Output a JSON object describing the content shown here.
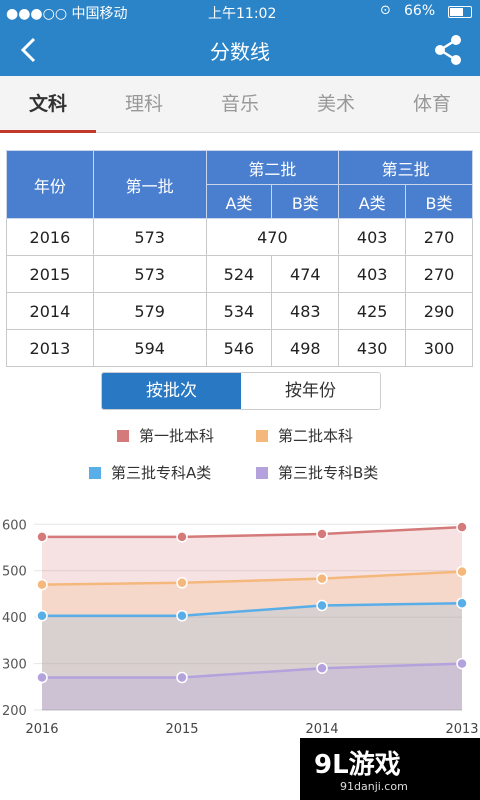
{
  "status": {
    "carrier": "●●●○○ 中国移动",
    "time": "上午11:02",
    "battery": "66%"
  },
  "nav": {
    "title": "分数线",
    "back_icon": "back-arrow-icon",
    "share_icon": "share-icon"
  },
  "tabs": [
    {
      "label": "文科",
      "active": true
    },
    {
      "label": "理科"
    },
    {
      "label": "音乐"
    },
    {
      "label": "美术"
    },
    {
      "label": "体育"
    }
  ],
  "table": {
    "headers": {
      "year": "年份",
      "batch1": "第一批",
      "batch2": "第二批",
      "batch3": "第三批",
      "a": "A类",
      "b": "B类"
    },
    "rows": [
      {
        "year": "2016",
        "b1": "573",
        "b2": "470",
        "b3a": "403",
        "b3b": "270"
      },
      {
        "year": "2015",
        "b1": "573",
        "b2a": "524",
        "b2b": "474",
        "b3a": "403",
        "b3b": "270"
      },
      {
        "year": "2014",
        "b1": "579",
        "b2a": "534",
        "b2b": "483",
        "b3a": "425",
        "b3b": "290"
      },
      {
        "year": "2013",
        "b1": "594",
        "b2a": "546",
        "b2b": "498",
        "b3a": "430",
        "b3b": "300"
      }
    ]
  },
  "toggle": {
    "by_batch": "按批次",
    "by_year": "按年份"
  },
  "colors": {
    "s1": "#d47a7a",
    "s2": "#f5b87c",
    "s3": "#5aaee8",
    "s4": "#b4a2dc",
    "nav": "#2b84c8"
  },
  "chart_data": {
    "type": "area",
    "x": [
      "2016",
      "2015",
      "2014",
      "2013"
    ],
    "ylim": [
      200,
      620
    ],
    "yticks": [
      200,
      300,
      400,
      500,
      600
    ],
    "legend": "top",
    "grid": true,
    "series": [
      {
        "name": "第一批本科",
        "values": [
          573,
          573,
          579,
          594
        ]
      },
      {
        "name": "第二批本科",
        "values": [
          470,
          474,
          483,
          498
        ]
      },
      {
        "name": "第三批专科A类",
        "values": [
          403,
          403,
          425,
          430
        ]
      },
      {
        "name": "第三批专科B类",
        "values": [
          270,
          270,
          290,
          300
        ]
      }
    ]
  },
  "watermark": {
    "main": "9L游戏",
    "sub": "91danji.com"
  }
}
